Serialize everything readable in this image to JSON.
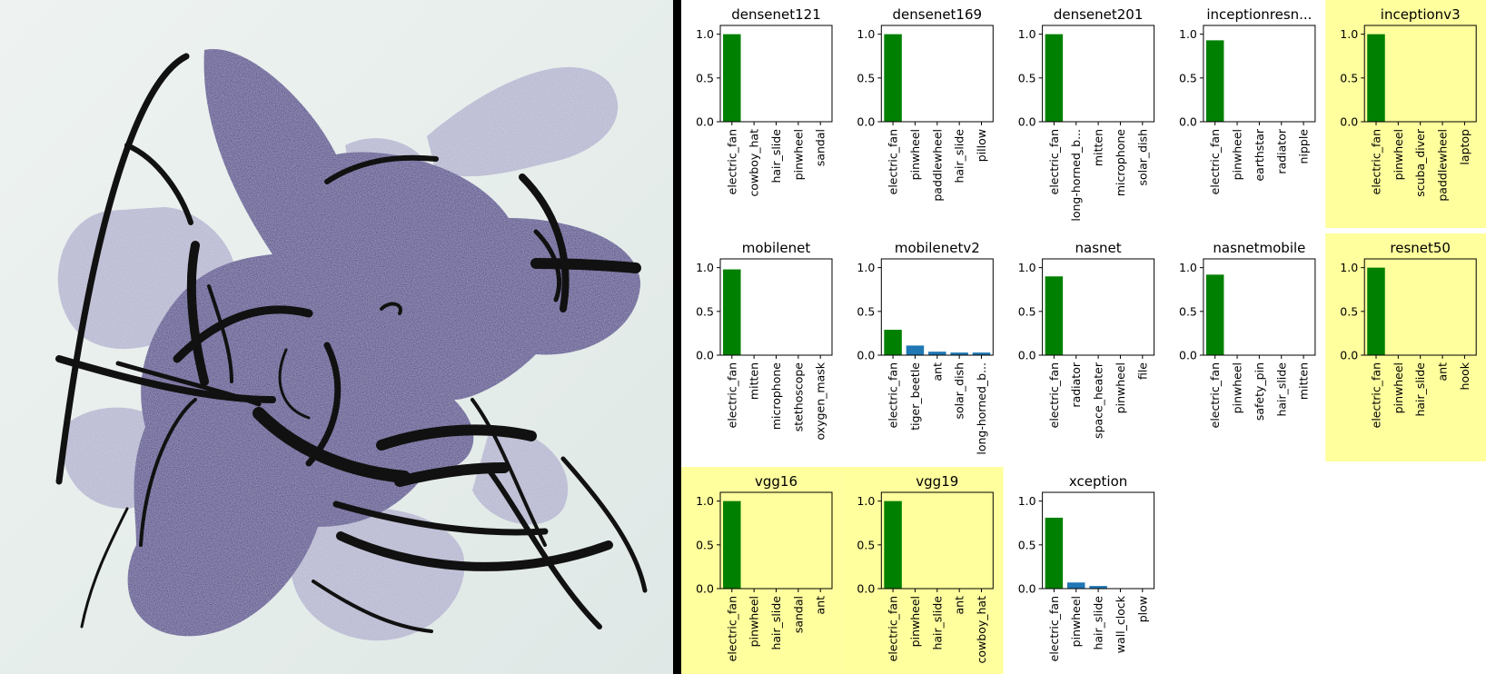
{
  "colors": {
    "top_bar": "#008000",
    "other_bar": "#1f77b4",
    "highlight": "#ffff9e",
    "art_background": "#e7efee",
    "blob_dark": "#3b2a86",
    "blob_light": "#aaaacb",
    "ink": "#111111"
  },
  "y_ticks": [
    "0.0",
    "0.5",
    "1.0"
  ],
  "chart_data": [
    {
      "type": "bar",
      "title": "densenet121",
      "highlighted": false,
      "ylim": [
        0,
        1.1
      ],
      "categories": [
        "electric_fan",
        "cowboy_hat",
        "hair_slide",
        "pinwheel",
        "sandal"
      ],
      "values": [
        1.0,
        0.0,
        0.0,
        0.0,
        0.0
      ]
    },
    {
      "type": "bar",
      "title": "densenet169",
      "highlighted": false,
      "ylim": [
        0,
        1.1
      ],
      "categories": [
        "electric_fan",
        "pinwheel",
        "paddlewheel",
        "hair_slide",
        "pillow"
      ],
      "values": [
        1.0,
        0.0,
        0.0,
        0.0,
        0.0
      ]
    },
    {
      "type": "bar",
      "title": "densenet201",
      "highlighted": false,
      "ylim": [
        0,
        1.1
      ],
      "categories": [
        "electric_fan",
        "long-horned_b...",
        "mitten",
        "microphone",
        "solar_dish"
      ],
      "values": [
        1.0,
        0.0,
        0.0,
        0.0,
        0.0
      ]
    },
    {
      "type": "bar",
      "title": "inceptionresn...",
      "highlighted": false,
      "ylim": [
        0,
        1.1
      ],
      "categories": [
        "electric_fan",
        "pinwheel",
        "earthstar",
        "radiator",
        "nipple"
      ],
      "values": [
        0.93,
        0.0,
        0.0,
        0.0,
        0.0
      ]
    },
    {
      "type": "bar",
      "title": "inceptionv3",
      "highlighted": true,
      "ylim": [
        0,
        1.1
      ],
      "categories": [
        "electric_fan",
        "pinwheel",
        "scuba_diver",
        "paddlewheel",
        "laptop"
      ],
      "values": [
        1.0,
        0.0,
        0.0,
        0.0,
        0.0
      ]
    },
    {
      "type": "bar",
      "title": "mobilenet",
      "highlighted": false,
      "ylim": [
        0,
        1.1
      ],
      "categories": [
        "electric_fan",
        "mitten",
        "microphone",
        "stethoscope",
        "oxygen_mask"
      ],
      "values": [
        0.98,
        0.0,
        0.0,
        0.0,
        0.0
      ]
    },
    {
      "type": "bar",
      "title": "mobilenetv2",
      "highlighted": false,
      "ylim": [
        0,
        1.1
      ],
      "categories": [
        "electric_fan",
        "tiger_beetle",
        "ant",
        "solar_dish",
        "long-horned_b..."
      ],
      "values": [
        0.29,
        0.11,
        0.04,
        0.03,
        0.03
      ]
    },
    {
      "type": "bar",
      "title": "nasnet",
      "highlighted": false,
      "ylim": [
        0,
        1.1
      ],
      "categories": [
        "electric_fan",
        "radiator",
        "space_heater",
        "pinwheel",
        "file"
      ],
      "values": [
        0.9,
        0.0,
        0.0,
        0.0,
        0.0
      ]
    },
    {
      "type": "bar",
      "title": "nasnetmobile",
      "highlighted": false,
      "ylim": [
        0,
        1.1
      ],
      "categories": [
        "electric_fan",
        "pinwheel",
        "safety_pin",
        "hair_slide",
        "mitten"
      ],
      "values": [
        0.92,
        0.0,
        0.0,
        0.0,
        0.0
      ]
    },
    {
      "type": "bar",
      "title": "resnet50",
      "highlighted": true,
      "ylim": [
        0,
        1.1
      ],
      "categories": [
        "electric_fan",
        "pinwheel",
        "hair_slide",
        "ant",
        "hook"
      ],
      "values": [
        1.0,
        0.0,
        0.0,
        0.0,
        0.0
      ]
    },
    {
      "type": "bar",
      "title": "vgg16",
      "highlighted": true,
      "ylim": [
        0,
        1.1
      ],
      "categories": [
        "electric_fan",
        "pinwheel",
        "hair_slide",
        "sandal",
        "ant"
      ],
      "values": [
        1.0,
        0.0,
        0.0,
        0.0,
        0.0
      ]
    },
    {
      "type": "bar",
      "title": "vgg19",
      "highlighted": true,
      "ylim": [
        0,
        1.1
      ],
      "categories": [
        "electric_fan",
        "pinwheel",
        "hair_slide",
        "ant",
        "cowboy_hat"
      ],
      "values": [
        1.0,
        0.0,
        0.0,
        0.0,
        0.0
      ]
    },
    {
      "type": "bar",
      "title": "xception",
      "highlighted": false,
      "ylim": [
        0,
        1.1
      ],
      "categories": [
        "electric_fan",
        "pinwheel",
        "hair_slide",
        "wall_clock",
        "plow"
      ],
      "values": [
        0.81,
        0.07,
        0.03,
        0.0,
        0.0
      ]
    }
  ]
}
